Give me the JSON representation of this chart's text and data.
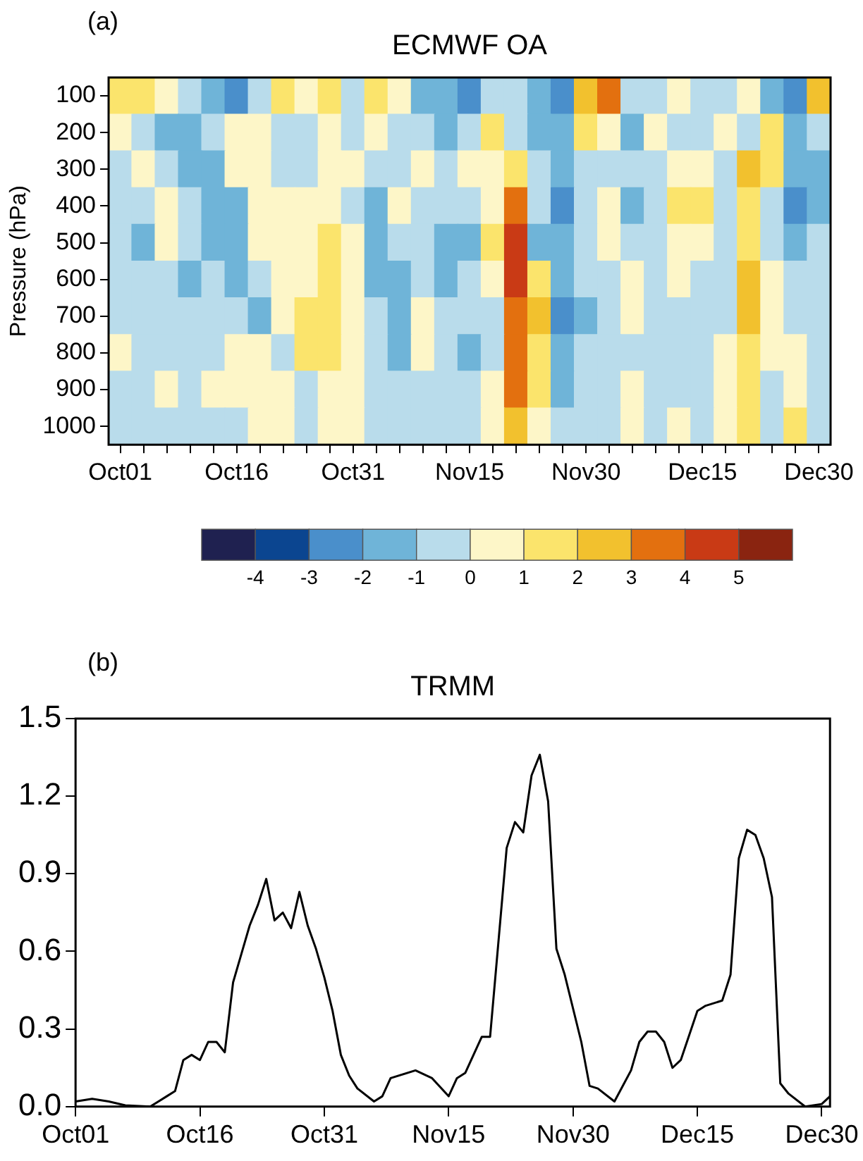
{
  "chart_data": [
    {
      "type": "heatmap",
      "title": "ECMWF OA",
      "ylabel": "Pressure (hPa)",
      "annotations": [
        "(a)"
      ],
      "categories": [
        "Oct01",
        null,
        null,
        null,
        null,
        "Oct16",
        null,
        null,
        null,
        null,
        "Oct31",
        null,
        null,
        null,
        null,
        "Nov15",
        null,
        null,
        null,
        null,
        "Nov30",
        null,
        null,
        null,
        null,
        "Dec15",
        null,
        null,
        null,
        null,
        "Dec30"
      ],
      "y_categories": [
        "100",
        "200",
        "300",
        "400",
        "500",
        "600",
        "700",
        "800",
        "900",
        "1000"
      ],
      "cells": [
        [
          1.5,
          1.5,
          0.5,
          -0.5,
          -1.5,
          -2.5,
          -0.5,
          1.5,
          0.5,
          1.5,
          -0.5,
          1.5,
          0.5,
          -1.5,
          -1.5,
          -2.5,
          -0.5,
          -0.5,
          -1.5,
          -2.5,
          2.5,
          3.5,
          -0.5,
          -0.5,
          0.5,
          -0.5,
          -0.5,
          0.5,
          -1.5,
          -2.5,
          2.5
        ],
        [
          0.5,
          -0.5,
          -1.5,
          -1.5,
          -0.5,
          0.5,
          0.5,
          -0.5,
          -0.5,
          0.5,
          -0.5,
          0.5,
          -0.5,
          -0.5,
          -1.5,
          -0.5,
          1.5,
          -0.5,
          -1.5,
          -1.5,
          1.5,
          0.5,
          -1.5,
          0.5,
          -0.5,
          -0.5,
          0.5,
          -0.5,
          1.5,
          -1.5,
          -0.5
        ],
        [
          -0.5,
          0.5,
          -0.5,
          -1.5,
          -1.5,
          0.5,
          0.5,
          -0.5,
          -0.5,
          0.5,
          0.5,
          -0.5,
          -0.5,
          0.5,
          -0.5,
          0.5,
          0.5,
          1.5,
          -0.5,
          -1.5,
          -0.5,
          -0.5,
          -0.5,
          -0.5,
          0.5,
          0.5,
          -0.5,
          2.5,
          1.5,
          -1.5,
          -1.5
        ],
        [
          -0.5,
          -0.5,
          0.5,
          -0.5,
          -1.5,
          -1.5,
          0.5,
          0.5,
          0.5,
          0.5,
          -0.5,
          -1.5,
          0.5,
          -0.5,
          -0.5,
          -0.5,
          0.5,
          3.5,
          -0.5,
          -2.5,
          -0.5,
          0.5,
          -1.5,
          -0.5,
          1.5,
          1.5,
          -0.5,
          1.5,
          -0.5,
          -2.5,
          -1.5
        ],
        [
          -0.5,
          -1.5,
          0.5,
          -0.5,
          -1.5,
          -1.5,
          0.5,
          0.5,
          0.5,
          1.5,
          0.5,
          -1.5,
          -0.5,
          -0.5,
          -1.5,
          -1.5,
          1.5,
          4.5,
          -1.5,
          -1.5,
          -0.5,
          0.5,
          -0.5,
          -0.5,
          0.5,
          0.5,
          -0.5,
          1.5,
          -0.5,
          -1.5,
          -0.5
        ],
        [
          -0.5,
          -0.5,
          -0.5,
          -1.5,
          -0.5,
          -1.5,
          -0.5,
          0.5,
          0.5,
          1.5,
          0.5,
          -1.5,
          -1.5,
          -0.5,
          -1.5,
          -0.5,
          0.5,
          4.5,
          1.5,
          -1.5,
          -0.5,
          -0.5,
          0.5,
          -0.5,
          0.5,
          -0.5,
          -0.5,
          2.5,
          0.5,
          -0.5,
          -0.5
        ],
        [
          -0.5,
          -0.5,
          -0.5,
          -0.5,
          -0.5,
          -0.5,
          -1.5,
          0.5,
          1.5,
          1.5,
          0.5,
          -0.5,
          -1.5,
          0.5,
          -0.5,
          -0.5,
          -0.5,
          3.5,
          2.5,
          -2.5,
          -1.5,
          -0.5,
          0.5,
          -0.5,
          -0.5,
          -0.5,
          -0.5,
          2.5,
          0.5,
          -0.5,
          -0.5
        ],
        [
          0.5,
          -0.5,
          -0.5,
          -0.5,
          -0.5,
          0.5,
          0.5,
          -0.5,
          1.5,
          1.5,
          0.5,
          -0.5,
          -1.5,
          0.5,
          -0.5,
          -1.5,
          -0.5,
          3.5,
          1.5,
          -1.5,
          -0.5,
          -0.5,
          -0.5,
          -0.5,
          -0.5,
          -0.5,
          0.5,
          1.5,
          0.5,
          0.5,
          -0.5
        ],
        [
          -0.5,
          -0.5,
          0.5,
          -0.5,
          0.5,
          0.5,
          0.5,
          0.5,
          -0.5,
          0.5,
          0.5,
          -0.5,
          -0.5,
          -0.5,
          -0.5,
          -0.5,
          0.5,
          3.5,
          1.5,
          -1.5,
          -0.5,
          -0.5,
          0.5,
          -0.5,
          -0.5,
          -0.5,
          0.5,
          1.5,
          -0.5,
          0.5,
          -0.5
        ],
        [
          -0.5,
          -0.5,
          -0.5,
          -0.5,
          -0.5,
          -0.5,
          0.5,
          0.5,
          -0.5,
          0.5,
          0.5,
          -0.5,
          -0.5,
          -0.5,
          -0.5,
          -0.5,
          0.5,
          2.5,
          0.5,
          -0.5,
          -0.5,
          -0.5,
          0.5,
          -0.5,
          0.5,
          -0.5,
          0.5,
          1.5,
          -0.5,
          1.5,
          -0.5
        ]
      ],
      "clim": [
        -5,
        6
      ],
      "cticks": [
        -4,
        -3,
        -2,
        -1,
        0,
        1,
        2,
        3,
        4,
        5
      ],
      "grid": false,
      "legend": false
    },
    {
      "type": "line",
      "title": "TRMM",
      "annotations": [
        "(b)"
      ],
      "x": [
        "--10-01",
        "--10-03",
        "--10-05",
        "--10-07",
        "--10-10",
        "--10-11",
        "--10-12",
        "--10-13",
        "--10-14",
        "--10-15",
        "--10-16",
        "--10-17",
        "--10-18",
        "--10-19",
        "--10-20",
        "--10-21",
        "--10-22",
        "--10-23",
        "--10-24",
        "--10-25",
        "--10-26",
        "--10-27",
        "--10-28",
        "--10-29",
        "--10-30",
        "--10-31",
        "--11-01",
        "--11-02",
        "--11-03",
        "--11-04",
        "--11-06",
        "--11-07",
        "--11-08",
        "--11-11",
        "--11-13",
        "--11-15",
        "--11-16",
        "--11-17",
        "--11-19",
        "--11-20",
        "--11-22",
        "--11-23",
        "--11-24",
        "--11-25",
        "--11-26",
        "--11-27",
        "--11-28",
        "--11-29",
        "--12-01",
        "--12-02",
        "--12-03",
        "--12-05",
        "--12-07",
        "--12-08",
        "--12-09",
        "--12-10",
        "--12-11",
        "--12-12",
        "--12-13",
        "--12-15",
        "--12-16",
        "--12-18",
        "--12-19",
        "--12-20",
        "--12-21",
        "--12-22",
        "--12-23",
        "--12-24",
        "--12-25",
        "--12-26",
        "--12-28",
        "--12-30",
        "--12-31"
      ],
      "series": [
        {
          "color": "#000000",
          "values": [
            0.02,
            0.03,
            0.02,
            0.005,
            0,
            0.02,
            0.04,
            0.06,
            0.18,
            0.2,
            0.18,
            0.25,
            0.25,
            0.21,
            0.48,
            0.59,
            0.7,
            0.78,
            0.88,
            0.72,
            0.75,
            0.69,
            0.83,
            0.7,
            0.61,
            0.5,
            0.37,
            0.2,
            0.12,
            0.07,
            0.02,
            0.04,
            0.11,
            0.14,
            0.11,
            0.04,
            0.11,
            0.13,
            0.27,
            0.27,
            1.0,
            1.1,
            1.06,
            1.28,
            1.36,
            1.18,
            0.61,
            0.51,
            0.25,
            0.08,
            0.07,
            0.02,
            0.14,
            0.25,
            0.29,
            0.29,
            0.25,
            0.15,
            0.18,
            0.37,
            0.39,
            0.41,
            0.51,
            0.96,
            1.07,
            1.05,
            0.96,
            0.81,
            0.09,
            0.05,
            0,
            0.01,
            0.04
          ]
        }
      ],
      "xlim": [
        "--10-01",
        "--12-31"
      ],
      "xticks": [
        {
          "value": "--10-01",
          "label": "Oct01"
        },
        {
          "value": "--10-16",
          "label": "Oct16"
        },
        {
          "value": "--10-31",
          "label": "Oct31"
        },
        {
          "value": "--11-15",
          "label": "Nov15"
        },
        {
          "value": "--11-30",
          "label": "Nov30"
        },
        {
          "value": "--12-15",
          "label": "Dec15"
        },
        {
          "value": "--12-30",
          "label": "Dec30"
        }
      ],
      "ylim": [
        0,
        1.5
      ],
      "yticks": [
        {
          "value": 0,
          "label": "0.0"
        },
        0.3,
        0.6,
        0.9,
        1.2,
        1.5
      ],
      "grid": false,
      "legend": false,
      "marker": "none",
      "line_style": "solid"
    }
  ]
}
